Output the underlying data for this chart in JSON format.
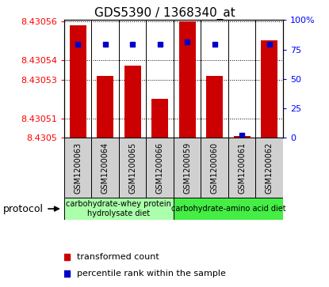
{
  "title": "GDS5390 / 1368340_at",
  "samples": [
    "GSM1200063",
    "GSM1200064",
    "GSM1200065",
    "GSM1200066",
    "GSM1200059",
    "GSM1200060",
    "GSM1200061",
    "GSM1200062"
  ],
  "red_values": [
    8.430558,
    8.430532,
    8.430537,
    8.43052,
    8.43056,
    8.430532,
    8.430501,
    8.43055
  ],
  "blue_values": [
    80,
    80,
    80,
    80,
    82,
    80,
    2,
    80
  ],
  "y_min": 8.4305,
  "y_max": 8.43056,
  "y_ticks": [
    8.4305,
    8.43051,
    8.43053,
    8.43054,
    8.43056
  ],
  "y_tick_labels": [
    "8.4305",
    "8.43051",
    "8.43053",
    "8.43054",
    "8.43056"
  ],
  "right_y_ticks": [
    0,
    25,
    50,
    75,
    100
  ],
  "right_y_labels": [
    "0",
    "25",
    "50",
    "75",
    "100%"
  ],
  "group1_label": "carbohydrate-whey protein\nhydrolysate diet",
  "group2_label": "carbohydrate-amino acid diet",
  "protocol_label": "protocol",
  "legend_red": "transformed count",
  "legend_blue": "percentile rank within the sample",
  "bar_color": "#cc0000",
  "blue_color": "#0000cc",
  "group1_bg": "#aaffaa",
  "group2_bg": "#44ee44",
  "sample_bg": "#d0d0d0",
  "plot_bg": "#ffffff",
  "grid_color": "#000000",
  "title_fontsize": 11,
  "tick_fontsize": 8,
  "sample_fontsize": 7,
  "legend_fontsize": 8,
  "protocol_fontsize": 9
}
